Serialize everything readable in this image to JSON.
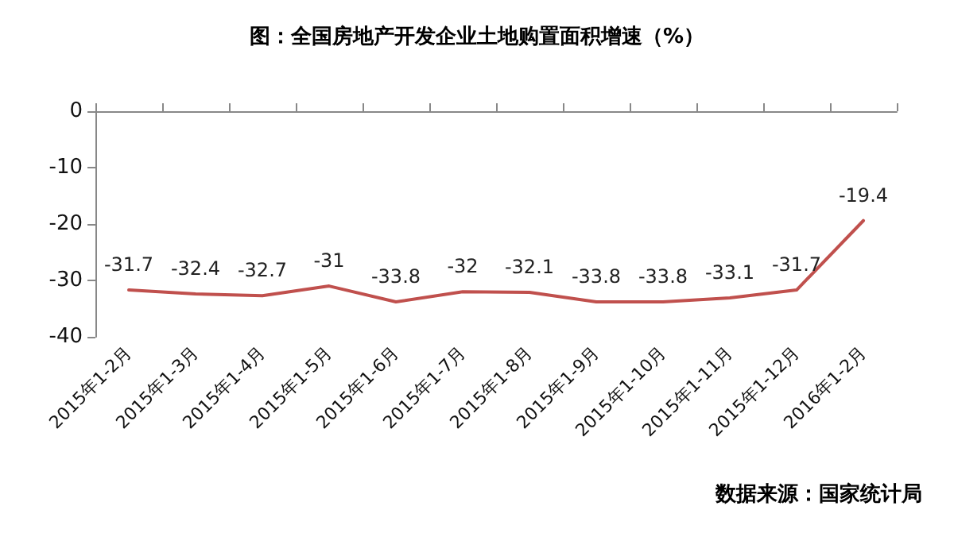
{
  "chart_data": {
    "type": "line",
    "title": "图：全国房地产开发企业土地购置面积增速（%）",
    "categories": [
      "2015年1-2月",
      "2015年1-3月",
      "2015年1-4月",
      "2015年1-5月",
      "2015年1-6月",
      "2015年1-7月",
      "2015年1-8月",
      "2015年1-9月",
      "2015年1-10月",
      "2015年1-11月",
      "2015年1-12月",
      "2016年1-2月"
    ],
    "series": [
      {
        "color": "#c0504d",
        "values": [
          -31.7,
          -32.4,
          -32.7,
          -31,
          -33.8,
          -32,
          -32.1,
          -33.8,
          -33.8,
          -33.1,
          -31.7,
          -19.4
        ]
      }
    ],
    "ylim": [
      -40,
      0
    ],
    "yticks": [
      0,
      -10,
      -20,
      -30,
      -40
    ],
    "data_labels": true,
    "grid": false,
    "marker": "none",
    "line_style": "solid",
    "annotations": [
      "数据来源：国家统计局"
    ]
  }
}
